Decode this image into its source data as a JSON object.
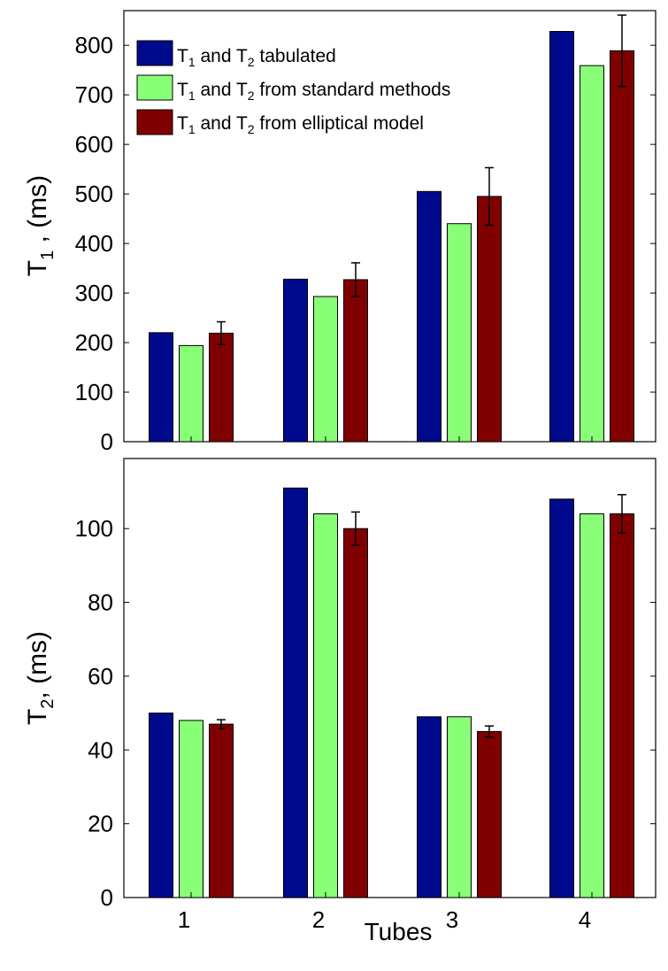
{
  "chart_data": [
    {
      "type": "bar",
      "ylabel": {
        "prefix": "T",
        "sub": "1",
        "suffix": " , (ms)"
      },
      "xlabel": "",
      "ylim": [
        0,
        870
      ],
      "yticks": [
        0,
        100,
        200,
        300,
        400,
        500,
        600,
        700,
        800
      ],
      "categories": [
        "1",
        "2",
        "3",
        "4"
      ],
      "legend_position": "top-left",
      "series": [
        {
          "name": "T1 and T2 tabulated",
          "color": "#000a8c",
          "values": [
            220,
            328,
            505,
            828
          ],
          "errors": null
        },
        {
          "name": "T1 and T2 from standard methods",
          "color": "#88ff77",
          "values": [
            194,
            293,
            440,
            759
          ],
          "errors": null
        },
        {
          "name": "T1 and T2 from elliptical model",
          "color": "#800000",
          "values": [
            219,
            327,
            495,
            789
          ],
          "errors": [
            23,
            34,
            58,
            72
          ]
        }
      ]
    },
    {
      "type": "bar",
      "ylabel": {
        "prefix": "T",
        "sub": "2",
        "suffix": ", (ms)"
      },
      "xlabel": "Tubes",
      "ylim": [
        0,
        119
      ],
      "yticks": [
        0,
        20,
        40,
        60,
        80,
        100
      ],
      "categories": [
        "1",
        "2",
        "3",
        "4"
      ],
      "series": [
        {
          "name": "T1 and T2 tabulated",
          "color": "#000a8c",
          "values": [
            50,
            111,
            49,
            108
          ],
          "errors": null
        },
        {
          "name": "T1 and T2 from standard methods",
          "color": "#88ff77",
          "values": [
            48,
            104,
            49,
            104
          ],
          "errors": null
        },
        {
          "name": "T1 and T2 from elliptical model",
          "color": "#800000",
          "values": [
            47,
            100,
            45,
            104
          ],
          "errors": [
            1.2,
            4.5,
            1.5,
            5.2
          ]
        }
      ]
    }
  ],
  "legend": [
    {
      "prefix": "T",
      "sub1": "1",
      "mid": " and T",
      "sub2": "2",
      "suffix": " tabulated",
      "color": "#000a8c"
    },
    {
      "prefix": "T",
      "sub1": "1",
      "mid": " and T",
      "sub2": "2",
      "suffix": " from standard methods",
      "color": "#88ff77"
    },
    {
      "prefix": "T",
      "sub1": "1",
      "mid": " and T",
      "sub2": "2",
      "suffix": " from elliptical model",
      "color": "#800000"
    }
  ]
}
